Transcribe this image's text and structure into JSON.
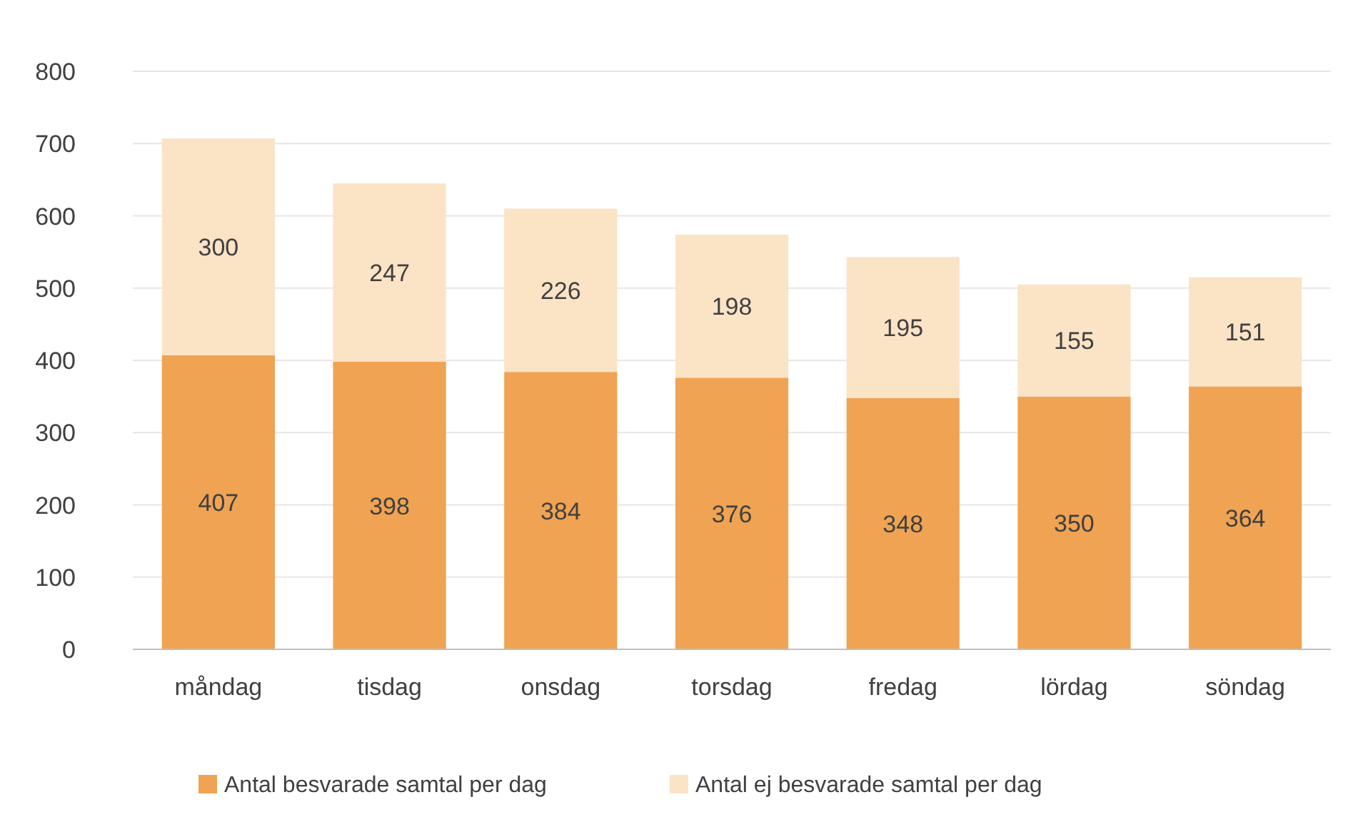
{
  "chart_data": {
    "type": "bar",
    "stacked": true,
    "categories": [
      "måndag",
      "tisdag",
      "onsdag",
      "torsdag",
      "fredag",
      "lördag",
      "söndag"
    ],
    "series": [
      {
        "name": "Antal besvarade samtal per dag",
        "color": "#f0a352",
        "values": [
          407,
          398,
          384,
          376,
          348,
          350,
          364
        ]
      },
      {
        "name": "Antal ej besvarade samtal per dag",
        "color": "#fbe3c6",
        "values": [
          300,
          247,
          226,
          198,
          195,
          155,
          151
        ]
      }
    ],
    "ylim": [
      0,
      800
    ],
    "yticks": [
      0,
      100,
      200,
      300,
      400,
      500,
      600,
      700,
      800
    ],
    "grid": "y",
    "legend": "bottom",
    "data_labels": true
  }
}
